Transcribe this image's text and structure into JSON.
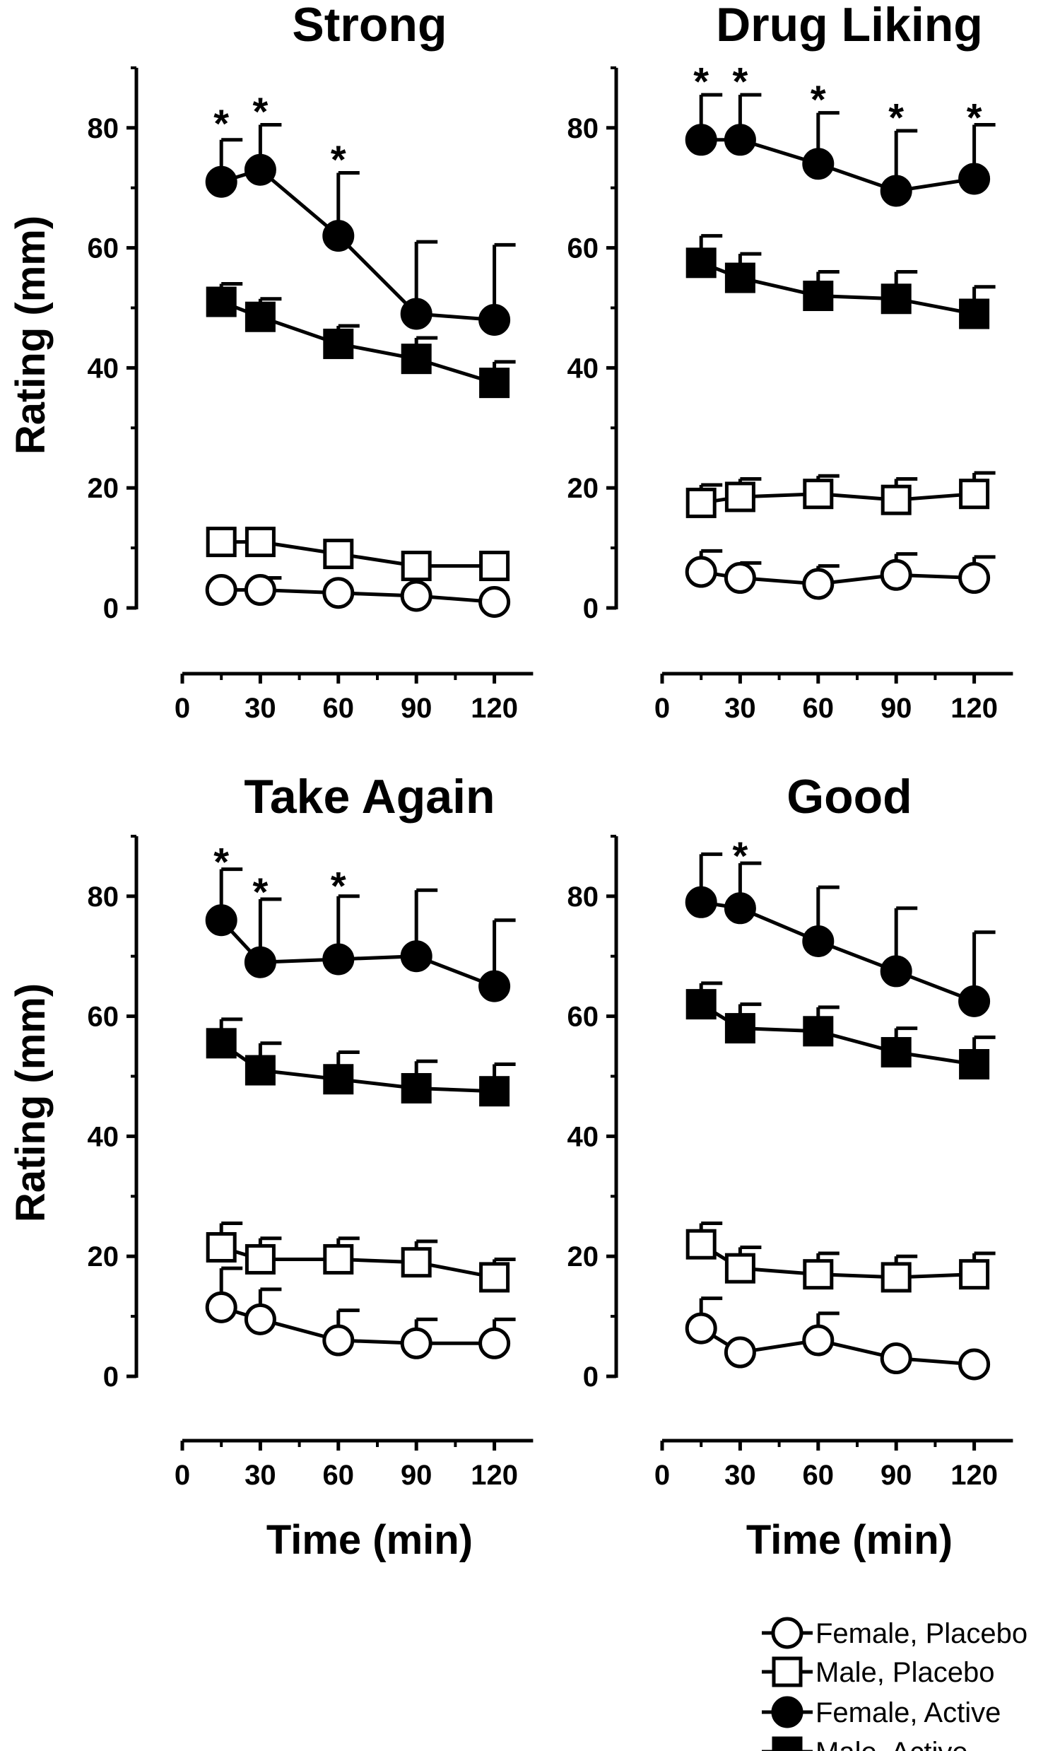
{
  "chart_data": [
    {
      "type": "line",
      "title": "Strong",
      "xlabel": "",
      "ylabel": "Rating (mm)",
      "xlim": [
        0,
        130
      ],
      "ylim": [
        0,
        90
      ],
      "x_ticks": [
        0,
        30,
        60,
        90,
        120
      ],
      "y_ticks": [
        0,
        20,
        40,
        60,
        80
      ],
      "x_tick_labels": [
        "0",
        "30",
        "60",
        "90",
        "120"
      ],
      "y_tick_labels": [
        "0",
        "20",
        "40",
        "60",
        "80"
      ],
      "x": [
        15,
        30,
        60,
        90,
        120
      ],
      "series": [
        {
          "name": "Female, Placebo",
          "values": [
            3,
            3,
            2.5,
            2,
            1
          ],
          "error": [
            0,
            2,
            0,
            0,
            0
          ]
        },
        {
          "name": "Male, Placebo",
          "values": [
            11,
            11,
            9,
            7,
            7
          ],
          "error": [
            0,
            0,
            0,
            0,
            0
          ]
        },
        {
          "name": "Female, Active",
          "values": [
            71,
            73,
            62,
            49,
            48
          ],
          "error": [
            7,
            7.5,
            10.5,
            12,
            12.5
          ]
        },
        {
          "name": "Male, Active",
          "values": [
            51,
            48.5,
            44,
            41.5,
            37.5
          ],
          "error": [
            3,
            3,
            3,
            3.5,
            3.5
          ]
        }
      ],
      "annotations": [
        {
          "text": "*",
          "x": 15,
          "y": 82
        },
        {
          "text": "*",
          "x": 30,
          "y": 84
        },
        {
          "text": "*",
          "x": 60,
          "y": 76
        }
      ]
    },
    {
      "type": "line",
      "title": "Drug Liking",
      "xlabel": "",
      "ylabel": "",
      "xlim": [
        0,
        130
      ],
      "ylim": [
        0,
        90
      ],
      "x_ticks": [
        0,
        30,
        60,
        90,
        120
      ],
      "y_ticks": [
        0,
        20,
        40,
        60,
        80
      ],
      "x_tick_labels": [
        "0",
        "30",
        "60",
        "90",
        "120"
      ],
      "y_tick_labels": [
        "0",
        "20",
        "40",
        "60",
        "80"
      ],
      "x": [
        15,
        30,
        60,
        90,
        120
      ],
      "series": [
        {
          "name": "Female, Placebo",
          "values": [
            6,
            5,
            4,
            5.5,
            5
          ],
          "error": [
            3.5,
            2.5,
            3,
            3.5,
            3.5
          ]
        },
        {
          "name": "Male, Placebo",
          "values": [
            17.5,
            18.5,
            19,
            18,
            19
          ],
          "error": [
            3,
            3,
            3,
            3.5,
            3.5
          ]
        },
        {
          "name": "Female, Active",
          "values": [
            78,
            78,
            74,
            69.5,
            71.5
          ],
          "error": [
            7.5,
            7.5,
            8.5,
            10,
            9
          ]
        },
        {
          "name": "Male, Active",
          "values": [
            57.5,
            55,
            52,
            51.5,
            49
          ],
          "error": [
            4.5,
            4,
            4,
            4.5,
            4.5
          ]
        }
      ],
      "annotations": [
        {
          "text": "*",
          "x": 15,
          "y": 89
        },
        {
          "text": "*",
          "x": 30,
          "y": 89
        },
        {
          "text": "*",
          "x": 60,
          "y": 86
        },
        {
          "text": "*",
          "x": 90,
          "y": 83
        },
        {
          "text": "*",
          "x": 120,
          "y": 83
        }
      ]
    },
    {
      "type": "line",
      "title": "Take Again",
      "xlabel": "Time (min)",
      "ylabel": "Rating (mm)",
      "xlim": [
        0,
        130
      ],
      "ylim": [
        0,
        90
      ],
      "x_ticks": [
        0,
        30,
        60,
        90,
        120
      ],
      "y_ticks": [
        0,
        20,
        40,
        60,
        80
      ],
      "x_tick_labels": [
        "0",
        "30",
        "60",
        "90",
        "120"
      ],
      "y_tick_labels": [
        "0",
        "20",
        "40",
        "60",
        "80"
      ],
      "x": [
        15,
        30,
        60,
        90,
        120
      ],
      "series": [
        {
          "name": "Female, Placebo",
          "values": [
            11.5,
            9.5,
            6,
            5.5,
            5.5
          ],
          "error": [
            6.5,
            5,
            5,
            4,
            4
          ]
        },
        {
          "name": "Male, Placebo",
          "values": [
            21.5,
            19.5,
            19.5,
            19,
            16.5
          ],
          "error": [
            4,
            3.5,
            3.5,
            3.5,
            3
          ]
        },
        {
          "name": "Female, Active",
          "values": [
            76,
            69,
            69.5,
            70,
            65
          ],
          "error": [
            8.5,
            10.5,
            10.5,
            11,
            11
          ]
        },
        {
          "name": "Male, Active",
          "values": [
            55.5,
            51,
            49.5,
            48,
            47.5
          ],
          "error": [
            4,
            4.5,
            4.5,
            4.5,
            4.5
          ]
        }
      ],
      "annotations": [
        {
          "text": "*",
          "x": 15,
          "y": 87
        },
        {
          "text": "*",
          "x": 30,
          "y": 82
        },
        {
          "text": "*",
          "x": 60,
          "y": 83
        }
      ]
    },
    {
      "type": "line",
      "title": "Good",
      "xlabel": "Time (min)",
      "ylabel": "",
      "xlim": [
        0,
        130
      ],
      "ylim": [
        0,
        90
      ],
      "x_ticks": [
        0,
        30,
        60,
        90,
        120
      ],
      "y_ticks": [
        0,
        20,
        40,
        60,
        80
      ],
      "x_tick_labels": [
        "0",
        "30",
        "60",
        "90",
        "120"
      ],
      "y_tick_labels": [
        "0",
        "20",
        "40",
        "60",
        "80"
      ],
      "x": [
        15,
        30,
        60,
        90,
        120
      ],
      "series": [
        {
          "name": "Female, Placebo",
          "values": [
            8,
            4,
            6,
            3,
            2
          ],
          "error": [
            5,
            0,
            4.5,
            0,
            0
          ]
        },
        {
          "name": "Male, Placebo",
          "values": [
            22,
            18,
            17,
            16.5,
            17
          ],
          "error": [
            3.5,
            3.5,
            3.5,
            3.5,
            3.5
          ]
        },
        {
          "name": "Female, Active",
          "values": [
            79,
            78,
            72.5,
            67.5,
            62.5
          ],
          "error": [
            8,
            7.5,
            9,
            10.5,
            11.5
          ]
        },
        {
          "name": "Male, Active",
          "values": [
            62,
            58,
            57.5,
            54,
            52
          ],
          "error": [
            3.5,
            4,
            4,
            4,
            4.5
          ]
        }
      ],
      "annotations": [
        {
          "text": "*",
          "x": 30,
          "y": 88
        }
      ]
    }
  ],
  "legend": {
    "placement": "bottom-right",
    "entries": [
      {
        "label": "Female, Placebo",
        "marker": "circle",
        "fill": "open"
      },
      {
        "label": "Male, Placebo",
        "marker": "square",
        "fill": "open"
      },
      {
        "label": "Female, Active",
        "marker": "circle",
        "fill": "filled"
      },
      {
        "label": "Male, Active",
        "marker": "square",
        "fill": "filled"
      }
    ]
  },
  "colors": {
    "ink": "#000000",
    "paper": "#ffffff"
  }
}
